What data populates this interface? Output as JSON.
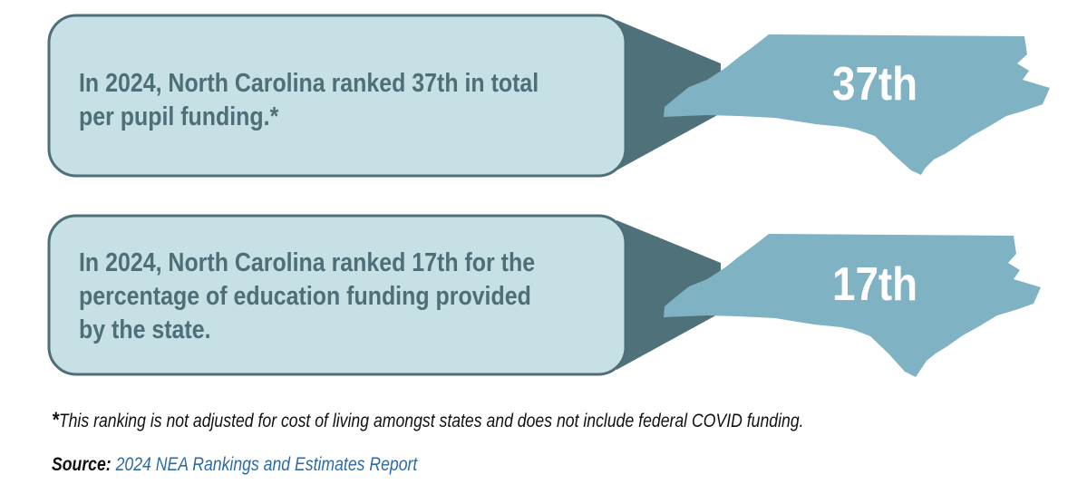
{
  "colors": {
    "bubble_fill": "#c7e0e6",
    "bubble_border": "#4e6e78",
    "connector": "#4f7179",
    "state_fill": "#7fb2c3",
    "text": "#4e6e78",
    "link": "#2e6aa4"
  },
  "cards": [
    {
      "text_lines": [
        "In 2024, North Carolina ranked 37th in total",
        "per pupil funding.*"
      ],
      "rank": "37th"
    },
    {
      "text_lines": [
        "In 2024, North Carolina ranked 17th for the",
        "percentage of education funding provided",
        "by the state."
      ],
      "rank": "17th"
    }
  ],
  "footnote": {
    "star": "*",
    "text": "This ranking is not adjusted for cost of living amongst states and does not include federal COVID funding."
  },
  "source": {
    "label": "Source:",
    "link_text": "2024 NEA Rankings and Estimates Report"
  }
}
